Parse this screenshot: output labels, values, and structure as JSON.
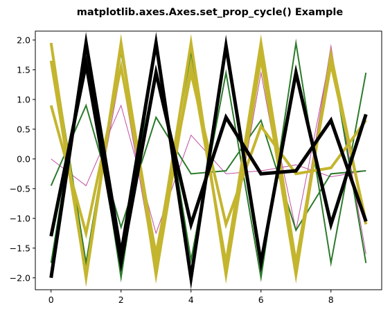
{
  "chart_data": {
    "type": "line",
    "title": "matplotlib.axes.Axes.set_prop_cycle() Example",
    "xlabel": "",
    "ylabel": "",
    "xlim": [
      -0.45,
      9.45
    ],
    "ylim": [
      -2.2,
      2.15
    ],
    "x_ticks": [
      0,
      2,
      4,
      6,
      8
    ],
    "y_ticks": [
      -2.0,
      -1.5,
      -1.0,
      -0.5,
      0.0,
      0.5,
      1.0,
      1.5,
      2.0
    ],
    "grid": false,
    "legend": "none",
    "x": [
      0,
      1,
      2,
      3,
      4,
      5,
      6,
      7,
      8,
      9
    ],
    "series": [
      {
        "color": "#bf4f9f",
        "width": 1,
        "values": [
          0.0,
          -0.45,
          0.9,
          -1.25,
          0.4,
          -0.25,
          -0.2,
          -0.1,
          -0.3,
          -0.2
        ]
      },
      {
        "color": "#bf4f9f",
        "width": 1,
        "values": [
          1.6,
          -1.75,
          1.5,
          -1.95,
          1.9,
          -1.95,
          1.45,
          -1.75,
          1.9,
          -1.75
        ]
      },
      {
        "color": "#bf4f9f",
        "width": 1,
        "values": [
          1.95,
          -1.85,
          1.85,
          -1.6,
          1.6,
          -1.8,
          1.6,
          -1.2,
          1.8,
          -1.6
        ]
      },
      {
        "color": "#2a7a2a",
        "width": 2,
        "values": [
          -0.45,
          0.9,
          -1.15,
          0.7,
          -0.25,
          -0.2,
          0.65,
          -1.2,
          -0.25,
          -0.2
        ]
      },
      {
        "color": "#2a7a2a",
        "width": 2,
        "values": [
          -1.75,
          1.9,
          -2.0,
          1.95,
          -1.7,
          1.45,
          -2.0,
          1.95,
          -1.75,
          1.45
        ]
      },
      {
        "color": "#2a7a2a",
        "width": 2,
        "values": [
          1.95,
          -1.75,
          1.8,
          -1.6,
          1.8,
          -1.85,
          1.75,
          -1.85,
          1.75,
          -1.75
        ]
      },
      {
        "color": "#c4b52e",
        "width": 4,
        "values": [
          0.9,
          -1.25,
          1.55,
          -1.6,
          1.45,
          -1.1,
          0.55,
          -0.25,
          -0.15,
          0.65
        ]
      },
      {
        "color": "#c4b52e",
        "width": 4,
        "values": [
          1.95,
          -2.0,
          1.9,
          -1.75,
          1.95,
          -1.95,
          1.7,
          -1.95,
          1.75,
          -1.1
        ]
      },
      {
        "color": "#c4b52e",
        "width": 4,
        "values": [
          1.65,
          -1.95,
          1.95,
          -1.95,
          1.6,
          -1.75,
          1.95,
          -1.75,
          1.6,
          -1.05
        ]
      },
      {
        "color": "#000000",
        "width": 5,
        "values": [
          -1.3,
          1.6,
          -1.75,
          1.45,
          -1.1,
          0.7,
          -0.25,
          -0.2,
          0.65,
          -1.05
        ]
      },
      {
        "color": "#000000",
        "width": 5,
        "values": [
          -2.0,
          1.95,
          -1.6,
          1.95,
          -2.0,
          1.9,
          -1.75,
          1.45,
          -1.1,
          0.75
        ]
      }
    ]
  }
}
